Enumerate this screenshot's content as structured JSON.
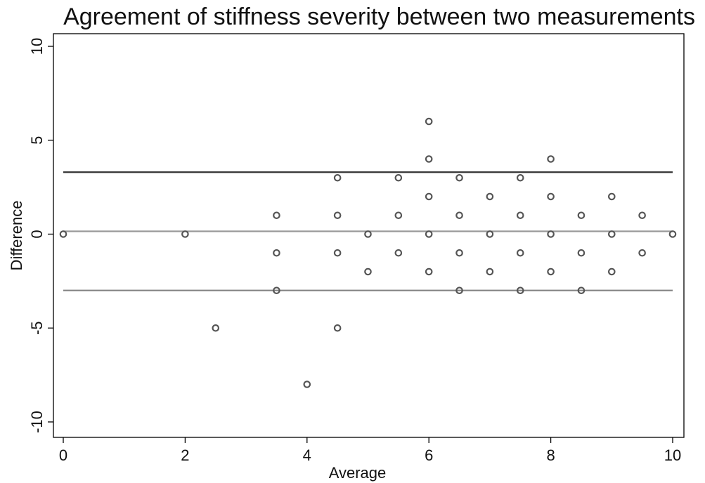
{
  "chart_data": {
    "type": "scatter",
    "title": "Agreement of stiffness severity between two measurements",
    "xlabel": "Average",
    "ylabel": "Difference",
    "xlim": [
      0,
      10
    ],
    "ylim": [
      -10,
      10
    ],
    "xticks": [
      0,
      2,
      4,
      6,
      8,
      10
    ],
    "yticks": [
      -10,
      -5,
      0,
      5,
      10
    ],
    "xtick_labels": [
      "0",
      "2",
      "4",
      "6",
      "8",
      "10"
    ],
    "ytick_labels": [
      "-10",
      "-5",
      "0",
      "5",
      "10"
    ],
    "grid": false,
    "points": [
      [
        0,
        0
      ],
      [
        2,
        0
      ],
      [
        2.5,
        -5
      ],
      [
        3.5,
        1
      ],
      [
        3.5,
        -1
      ],
      [
        3.5,
        -3
      ],
      [
        4,
        -8
      ],
      [
        4.5,
        3
      ],
      [
        4.5,
        1
      ],
      [
        4.5,
        -1
      ],
      [
        4.5,
        -5
      ],
      [
        5,
        0
      ],
      [
        5,
        -2
      ],
      [
        5.5,
        3
      ],
      [
        5.5,
        1
      ],
      [
        5.5,
        -1
      ],
      [
        6,
        6
      ],
      [
        6,
        4
      ],
      [
        6,
        2
      ],
      [
        6,
        0
      ],
      [
        6,
        -2
      ],
      [
        6.5,
        3
      ],
      [
        6.5,
        1
      ],
      [
        6.5,
        -1
      ],
      [
        6.5,
        -3
      ],
      [
        7,
        2
      ],
      [
        7,
        0
      ],
      [
        7,
        -2
      ],
      [
        7.5,
        3
      ],
      [
        7.5,
        1
      ],
      [
        7.5,
        -1
      ],
      [
        7.5,
        -3
      ],
      [
        8,
        4
      ],
      [
        8,
        2
      ],
      [
        8,
        0
      ],
      [
        8,
        -2
      ],
      [
        8.5,
        1
      ],
      [
        8.5,
        -1
      ],
      [
        8.5,
        -3
      ],
      [
        9,
        2
      ],
      [
        9,
        0
      ],
      [
        9,
        -2
      ],
      [
        9.5,
        1
      ],
      [
        9.5,
        -1
      ],
      [
        10,
        0
      ]
    ],
    "reference_lines": [
      {
        "y": 3.3,
        "color": "#333333"
      },
      {
        "y": 0.15,
        "color": "#999999"
      },
      {
        "y": -3.0,
        "color": "#888888"
      }
    ],
    "marker_color": "#555555"
  }
}
